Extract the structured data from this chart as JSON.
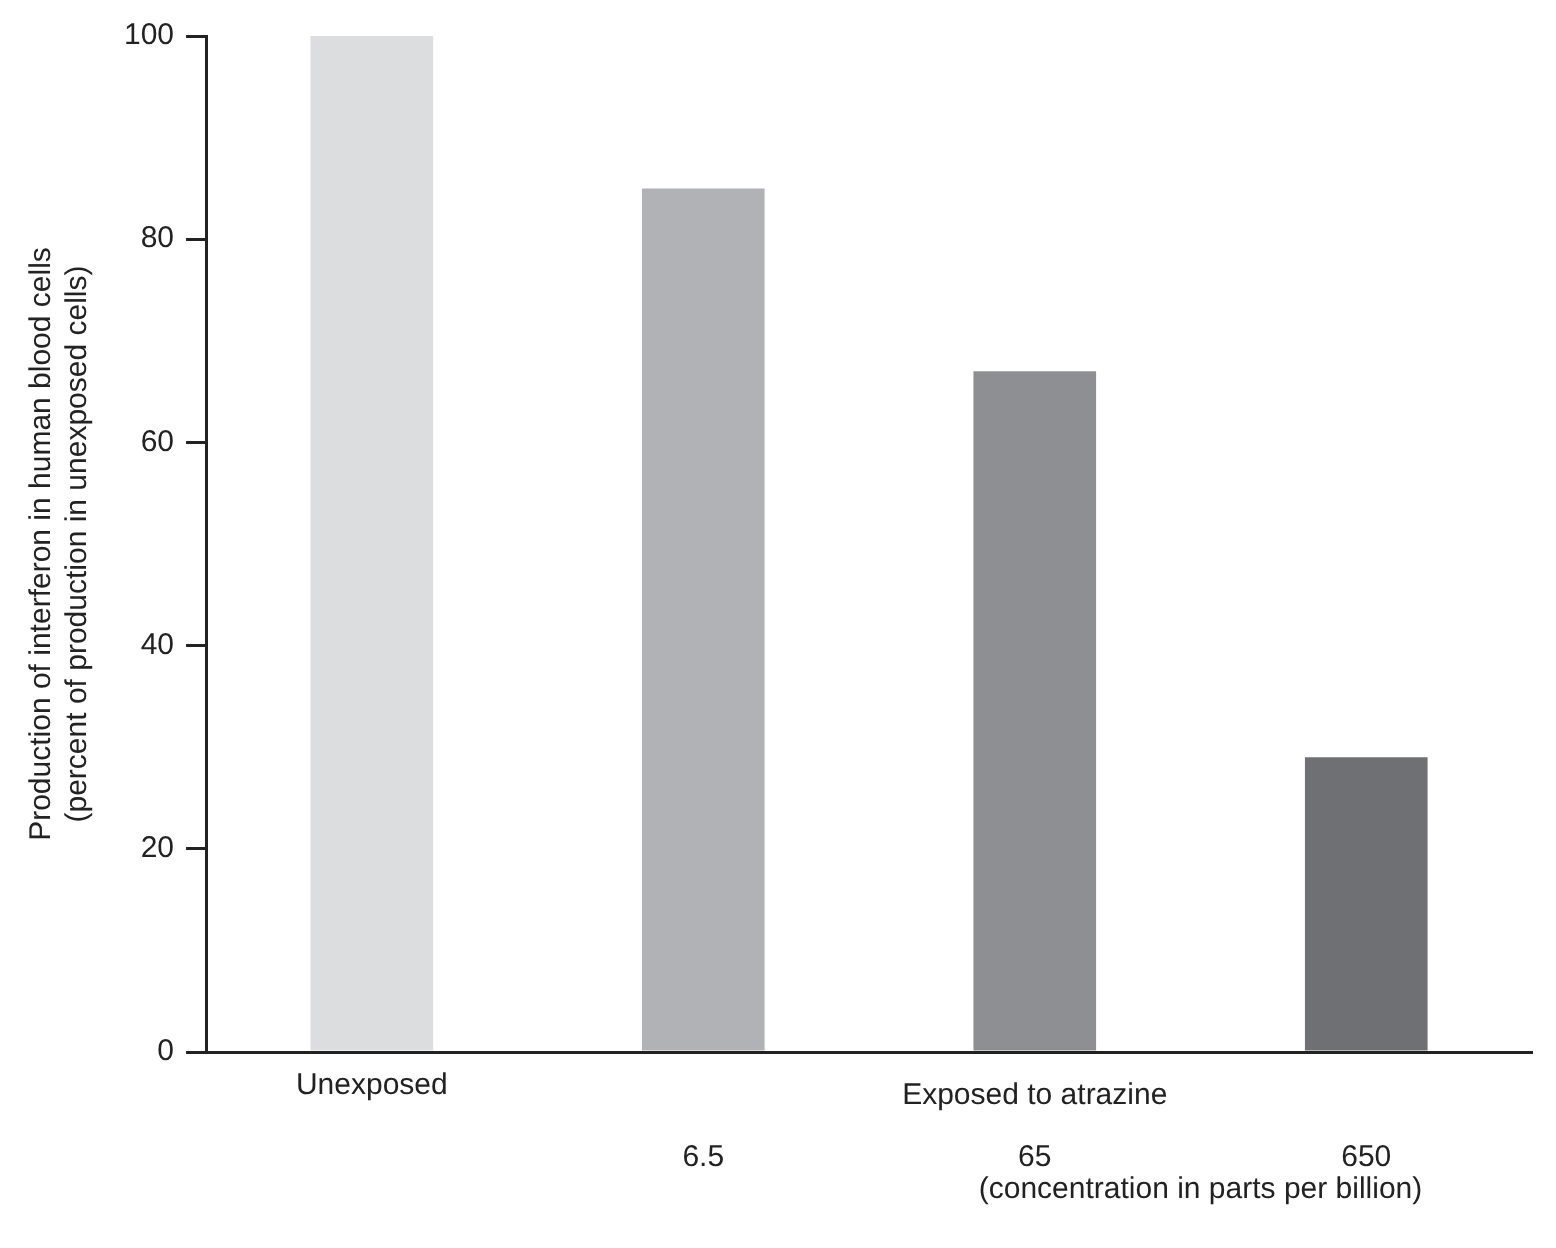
{
  "chart_data": {
    "type": "bar",
    "ylabel": "Production of interferon in human blood cells\n(percent of production in unexposed cells)",
    "categories": [
      "Unexposed",
      "6.5",
      "65",
      "650"
    ],
    "values": [
      100,
      85,
      67,
      29
    ],
    "colors": [
      "#dcdddf",
      "#b1b2b5",
      "#8e8f92",
      "#6f7073"
    ],
    "ylim": [
      0,
      100
    ],
    "yticks": [
      0,
      20,
      40,
      60,
      80,
      100
    ],
    "grid": false,
    "legend": false,
    "annotations": [
      "Exposed to atrazine",
      "(concentration in parts per billion)"
    ]
  }
}
